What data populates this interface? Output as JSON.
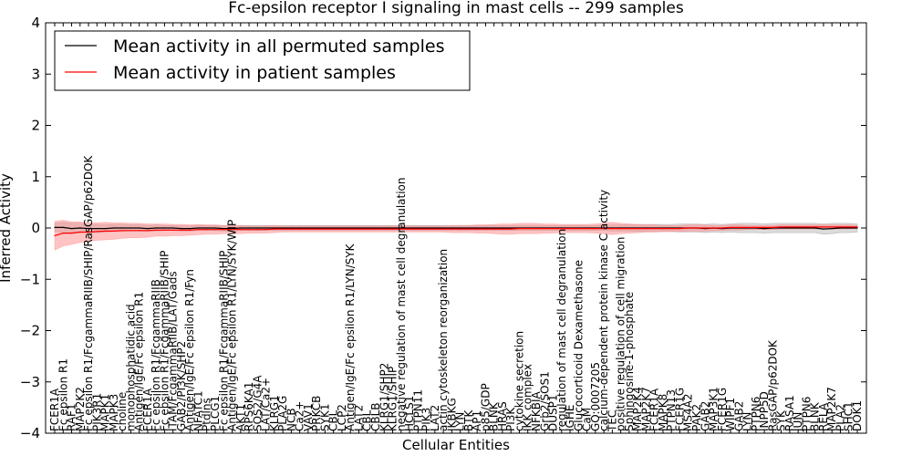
{
  "chart_data": {
    "type": "line",
    "title": "Fc-epsilon receptor I signaling in mast cells -- 299 samples",
    "xlabel": "Cellular Entities",
    "ylabel": "Inferred Activity",
    "ylim": [
      -4,
      4
    ],
    "yticks": [
      -4,
      -3,
      -2,
      -1,
      0,
      1,
      2,
      3,
      4
    ],
    "legend_position": "top-left",
    "categories": [
      "FCER1A",
      "Fc epsilon R1",
      "RAF1",
      "MAP2K2",
      "Fc epsilon R1/FcgammaRIIB/SHIP/RasGAP/p62DOK",
      "PIK3R1",
      "MAPK1",
      "MAPK3",
      "choline",
      "monophosphatidic acid",
      "Antigen/IgE/Fc epsilon R1",
      "FCER1A",
      "Fc epsilon R1/FcgammaRIIB",
      "Fc epsilon R1/FcgammaRIIB/SHIP",
      "ITAM/FcgammaRIIB/LAT/Gads",
      "GAB2/PI3K/SHP2",
      "Antigen/IgE/Fc epsilon R1/Fyn",
      "NFATC1",
      "Ptdlns",
      "PLCG1",
      "Fc epsilon R1/FcgammaRIIB/SHIP",
      "Antigen/IgE/Fc epsilon R1/LYN/SYK/WIP",
      "AKT1",
      "RPS6KA1",
      "SOS2/G4A",
      "LAT/Ca2+",
      "KLRG1",
      "PLA2G",
      "NCB",
      "Ca2+",
      "VAV1",
      "PRKCB",
      "SYK1",
      "CBL",
      "LCP2",
      "Antigen/IgE/Fc epsilon R1/LYN/SYK",
      "LAT2",
      "CBL",
      "CBLB",
      "KLRG1/SHP2",
      "KLRG1/SHIP",
      "negative regulation of mast cell degranulation",
      "HCLS1",
      "PTPN11",
      "PIK3",
      "LAT2",
      "actin cytoskeleton reorganization",
      "IKBKG",
      "LYN",
      "BTK",
      "AP1",
      "p85/GDP",
      "BLNK",
      "HRAS",
      "PI3K",
      "cytokine secretion",
      "IKK complex",
      "NFKBIA",
      "Grb2/SOS1",
      "DUSP1",
      "regulation of mast cell degranulation",
      "IGHE",
      "Glucocorticoid Dexamethasone",
      "CaM",
      "GO:0007205",
      "calcium-dependent protein kinase C activity",
      "TEC",
      "positive regulation of cell migration",
      "Sphingosine-1-phosphate",
      "MAP2K4",
      "MAP2K7",
      "FCER1A",
      "MAPK8",
      "PTPN13",
      "FCER1G",
      "MS4A2",
      "PAK2",
      "GAB2",
      "MAP3K1",
      "FCER1G",
      "WIPF1",
      "GAB2",
      "LYN",
      "PTPN6",
      "INPP5D",
      "RasGAP/p62DOK",
      "SYK",
      "RASA1",
      "JUN",
      "PTPN6",
      "BLNK",
      "RELA",
      "MAP2K7",
      "PLA2",
      "SHC1",
      "DOK1"
    ],
    "series": [
      {
        "name": "Mean activity in all permuted samples",
        "color": "#000000",
        "band_color": "#999999",
        "values": [
          0.01,
          0.01,
          -0.01,
          0.0,
          -0.01,
          -0.01,
          -0.01,
          0.0,
          0.0,
          0.0,
          0.0,
          -0.01,
          0.0,
          0.0,
          0.0,
          -0.01,
          -0.01,
          0.0,
          0.0,
          0.0,
          -0.01,
          -0.01,
          0.0,
          0.0,
          0.0,
          0.0,
          0.0,
          0.0,
          0.0,
          0.0,
          0.0,
          0.0,
          0.0,
          0.0,
          0.0,
          0.0,
          0.0,
          0.0,
          0.0,
          0.0,
          0.0,
          0.0,
          0.0,
          0.0,
          0.0,
          0.0,
          0.0,
          0.0,
          0.0,
          0.0,
          0.0,
          0.0,
          0.0,
          0.0,
          0.0,
          0.0,
          0.0,
          0.0,
          0.0,
          0.0,
          0.0,
          0.0,
          0.0,
          0.0,
          0.0,
          0.0,
          0.0,
          0.0,
          0.0,
          0.0,
          0.0,
          0.0,
          0.0,
          0.0,
          0.0,
          0.0,
          0.0,
          -0.01,
          0.0,
          -0.01,
          0.0,
          0.0,
          0.0,
          0.0,
          -0.01,
          0.0,
          0.0,
          0.0,
          0.0,
          0.0,
          0.0,
          -0.02,
          -0.01,
          0.0,
          0.0,
          0.0
        ],
        "band": [
          0.08,
          0.1,
          0.1,
          0.09,
          0.08,
          0.08,
          0.07,
          0.07,
          0.07,
          0.06,
          0.06,
          0.06,
          0.06,
          0.05,
          0.05,
          0.05,
          0.05,
          0.05,
          0.05,
          0.05,
          0.05,
          0.05,
          0.05,
          0.05,
          0.05,
          0.05,
          0.05,
          0.05,
          0.05,
          0.05,
          0.05,
          0.05,
          0.05,
          0.05,
          0.05,
          0.05,
          0.05,
          0.05,
          0.05,
          0.05,
          0.05,
          0.05,
          0.05,
          0.05,
          0.05,
          0.05,
          0.05,
          0.05,
          0.05,
          0.05,
          0.05,
          0.05,
          0.05,
          0.05,
          0.05,
          0.05,
          0.05,
          0.05,
          0.05,
          0.05,
          0.05,
          0.05,
          0.05,
          0.05,
          0.05,
          0.05,
          0.06,
          0.06,
          0.06,
          0.07,
          0.07,
          0.07,
          0.07,
          0.07,
          0.08,
          0.08,
          0.08,
          0.08,
          0.08,
          0.08,
          0.08,
          0.09,
          0.09,
          0.09,
          0.09,
          0.09,
          0.09,
          0.09,
          0.09,
          0.09,
          0.09,
          0.1,
          0.1,
          0.09,
          0.09,
          0.08
        ]
      },
      {
        "name": "Mean activity in patient samples",
        "color": "#ff0000",
        "band_color": "#ff8888",
        "values": [
          -0.15,
          -0.1,
          -0.1,
          -0.08,
          -0.08,
          -0.07,
          -0.06,
          -0.06,
          -0.05,
          -0.05,
          -0.05,
          -0.05,
          -0.04,
          -0.04,
          -0.04,
          -0.04,
          -0.04,
          -0.03,
          -0.03,
          -0.03,
          -0.03,
          -0.03,
          -0.03,
          -0.03,
          -0.03,
          -0.03,
          -0.02,
          -0.02,
          -0.02,
          -0.02,
          -0.02,
          -0.02,
          -0.02,
          -0.02,
          -0.02,
          -0.02,
          -0.02,
          -0.02,
          -0.02,
          -0.02,
          -0.02,
          -0.02,
          -0.02,
          -0.02,
          -0.02,
          -0.02,
          -0.02,
          -0.02,
          -0.02,
          -0.02,
          -0.02,
          -0.02,
          -0.02,
          -0.02,
          -0.02,
          -0.01,
          -0.01,
          -0.01,
          -0.01,
          -0.01,
          -0.01,
          -0.01,
          -0.01,
          -0.01,
          -0.01,
          -0.01,
          -0.01,
          -0.01,
          -0.01,
          -0.01,
          -0.01,
          -0.01,
          -0.01,
          -0.01,
          -0.01,
          0.0,
          0.0,
          0.0,
          0.0,
          0.0,
          0.01,
          0.01,
          0.01,
          0.01,
          0.01,
          0.01,
          0.02,
          0.02,
          0.02,
          0.02,
          0.02,
          0.02,
          0.02,
          0.02,
          0.02,
          0.02
        ],
        "band": [
          0.28,
          0.25,
          0.22,
          0.2,
          0.18,
          0.17,
          0.17,
          0.16,
          0.15,
          0.14,
          0.14,
          0.13,
          0.12,
          0.12,
          0.11,
          0.11,
          0.1,
          0.1,
          0.09,
          0.09,
          0.08,
          0.08,
          0.08,
          0.07,
          0.07,
          0.07,
          0.07,
          0.06,
          0.06,
          0.06,
          0.06,
          0.06,
          0.06,
          0.06,
          0.06,
          0.06,
          0.06,
          0.06,
          0.06,
          0.06,
          0.06,
          0.06,
          0.06,
          0.06,
          0.06,
          0.06,
          0.06,
          0.07,
          0.07,
          0.07,
          0.08,
          0.08,
          0.09,
          0.1,
          0.1,
          0.1,
          0.1,
          0.1,
          0.09,
          0.09,
          0.08,
          0.08,
          0.08,
          0.08,
          0.09,
          0.1,
          0.12,
          0.1,
          0.09,
          0.08,
          0.07,
          0.07,
          0.06,
          0.06,
          0.06,
          0.06,
          0.06,
          0.06,
          0.05,
          0.05,
          0.05,
          0.05,
          0.04,
          0.04,
          0.04,
          0.04,
          0.04,
          0.04,
          0.04,
          0.04,
          0.04,
          0.04,
          0.04,
          0.04,
          0.04,
          0.03
        ]
      }
    ]
  }
}
